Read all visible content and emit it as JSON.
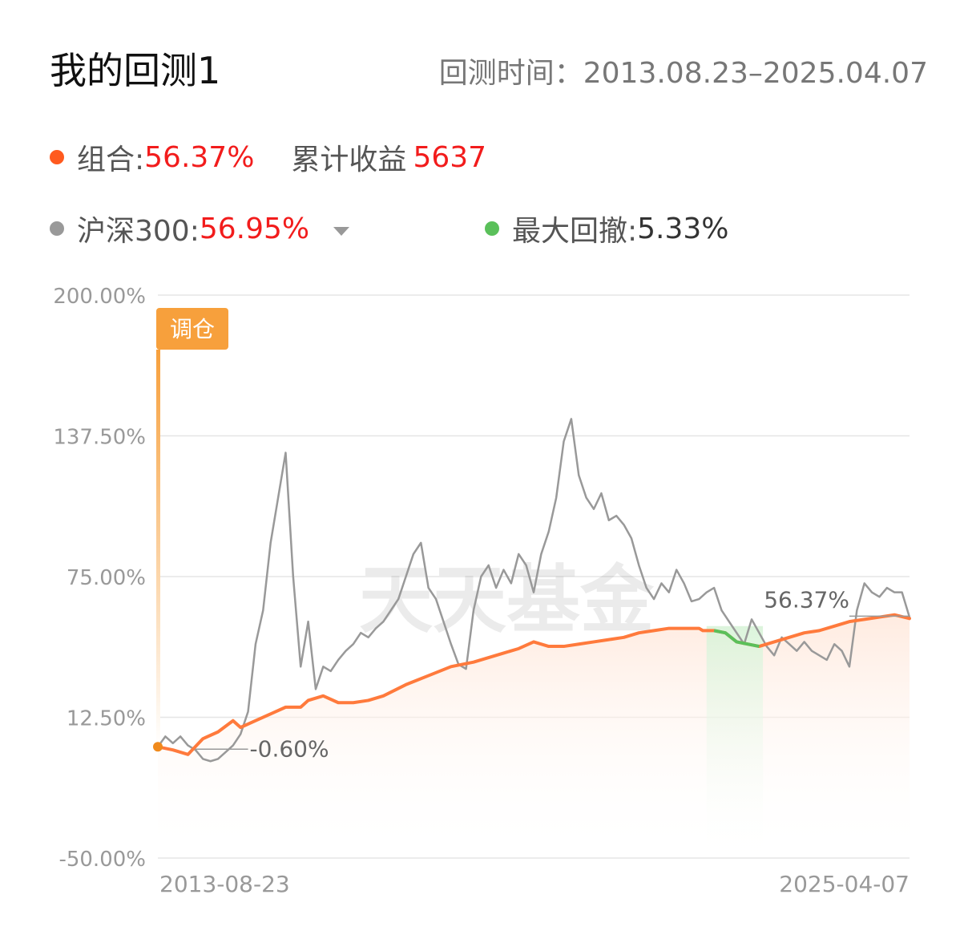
{
  "header": {
    "title": "我的回测1",
    "period_label": "回测时间：",
    "period_value": "2013.08.23–2025.04.07"
  },
  "legend": {
    "portfolio": {
      "label": "组合:",
      "value": "56.37%",
      "color": "#ff5a1f"
    },
    "cumulative": {
      "label": "累计收益",
      "value": "5637"
    },
    "benchmark": {
      "label": "沪深300:",
      "value": "56.95%",
      "color": "#999999",
      "dropdown": "caret-down-icon"
    },
    "drawdown": {
      "label": "最大回撤:",
      "value": "5.33%",
      "color": "#5ac05a"
    }
  },
  "chart_data": {
    "type": "line",
    "yticks": [
      "200.00%",
      "137.50%",
      "75.00%",
      "12.50%",
      "-50.00%"
    ],
    "ylim": [
      -50,
      200
    ],
    "x_start_label": "2013-08-23",
    "x_end_label": "2025-04-07",
    "rebalance_tag": "调仓",
    "start_annotation": "-0.60%",
    "end_annotation": "56.37%",
    "watermark": "天天基金",
    "grid": true,
    "series": [
      {
        "name": "组合",
        "color": "#ff7a3c",
        "x": [
          0.0,
          0.02,
          0.04,
          0.06,
          0.08,
          0.1,
          0.11,
          0.13,
          0.15,
          0.17,
          0.19,
          0.2,
          0.22,
          0.24,
          0.26,
          0.28,
          0.3,
          0.33,
          0.36,
          0.39,
          0.42,
          0.44,
          0.46,
          0.48,
          0.5,
          0.52,
          0.54,
          0.56,
          0.58,
          0.6,
          0.62,
          0.64,
          0.66,
          0.68,
          0.7,
          0.72,
          0.725,
          0.74,
          0.755,
          0.77,
          0.8,
          0.82,
          0.84,
          0.86,
          0.88,
          0.9,
          0.92,
          0.94,
          0.96,
          0.98,
          1.0
        ],
        "values": [
          -0.6,
          -2,
          -4,
          3,
          6,
          11,
          8,
          11,
          14,
          17,
          17,
          20,
          22,
          19,
          19,
          20,
          22,
          27,
          31,
          35,
          37,
          39,
          41,
          43,
          46,
          44,
          44,
          45,
          46,
          47,
          48,
          50,
          51,
          52,
          52,
          52,
          51,
          51,
          50,
          46,
          44,
          46,
          48,
          50,
          51,
          53,
          55,
          56,
          57,
          58,
          56.37
        ]
      },
      {
        "name": "沪深300",
        "color": "#999999",
        "x": [
          0.0,
          0.01,
          0.02,
          0.03,
          0.04,
          0.05,
          0.06,
          0.07,
          0.08,
          0.09,
          0.1,
          0.11,
          0.12,
          0.13,
          0.14,
          0.15,
          0.16,
          0.17,
          0.18,
          0.19,
          0.2,
          0.21,
          0.22,
          0.23,
          0.24,
          0.25,
          0.26,
          0.27,
          0.28,
          0.29,
          0.3,
          0.31,
          0.32,
          0.33,
          0.34,
          0.35,
          0.36,
          0.37,
          0.38,
          0.39,
          0.4,
          0.41,
          0.42,
          0.43,
          0.44,
          0.45,
          0.46,
          0.47,
          0.48,
          0.49,
          0.5,
          0.51,
          0.52,
          0.53,
          0.54,
          0.55,
          0.56,
          0.57,
          0.58,
          0.59,
          0.6,
          0.61,
          0.62,
          0.63,
          0.64,
          0.65,
          0.66,
          0.67,
          0.68,
          0.69,
          0.7,
          0.71,
          0.72,
          0.73,
          0.74,
          0.75,
          0.76,
          0.77,
          0.78,
          0.79,
          0.8,
          0.81,
          0.82,
          0.83,
          0.84,
          0.85,
          0.86,
          0.87,
          0.88,
          0.89,
          0.9,
          0.91,
          0.92,
          0.93,
          0.94,
          0.95,
          0.96,
          0.97,
          0.98,
          0.99,
          1.0
        ],
        "values": [
          -0.6,
          4,
          1,
          4,
          0,
          -2,
          -6,
          -7,
          -6,
          -3,
          0,
          5,
          15,
          45,
          60,
          90,
          110,
          130,
          75,
          35,
          55,
          25,
          35,
          33,
          38,
          42,
          45,
          50,
          48,
          52,
          55,
          60,
          65,
          75,
          85,
          90,
          70,
          65,
          55,
          45,
          36,
          34,
          60,
          75,
          80,
          70,
          78,
          72,
          85,
          80,
          68,
          85,
          95,
          110,
          135,
          145,
          120,
          110,
          105,
          112,
          100,
          102,
          98,
          92,
          80,
          70,
          65,
          72,
          68,
          78,
          72,
          64,
          65,
          68,
          70,
          60,
          55,
          50,
          45,
          56,
          50,
          44,
          40,
          48,
          45,
          42,
          46,
          42,
          40,
          38,
          45,
          42,
          35,
          60,
          72,
          68,
          66,
          70,
          68,
          68,
          56.95
        ]
      }
    ],
    "drawdown_range": [
      0.73,
      0.805
    ]
  }
}
